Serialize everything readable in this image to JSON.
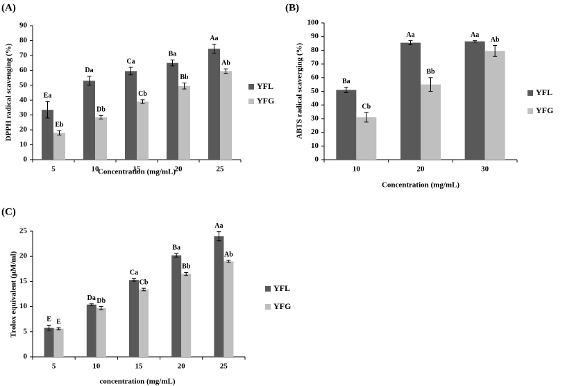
{
  "colors": {
    "YFL": "#595959",
    "YFG": "#bfbfbf",
    "axis": "#000000"
  },
  "chart_data": [
    {
      "id": "A",
      "type": "bar",
      "panel_label": "(A)",
      "xlabel": "Concentration (mg/mL)",
      "ylabel": "DPPH radical scavenging (%)",
      "ylim": [
        0,
        90
      ],
      "yticks": [
        0,
        10,
        20,
        30,
        40,
        50,
        60,
        70,
        80,
        90
      ],
      "grid": false,
      "legend": "right",
      "categories": [
        "5",
        "10",
        "15",
        "20",
        "25"
      ],
      "series": [
        {
          "name": "YFL",
          "values": [
            33.5,
            53,
            59.5,
            65,
            74.5
          ],
          "errors": [
            5.5,
            3,
            2.5,
            2,
            3
          ],
          "labels": [
            "Ea",
            "Da",
            "Ca",
            "Ba",
            "Aa"
          ]
        },
        {
          "name": "YFG",
          "values": [
            18,
            28.5,
            39,
            49.5,
            59.5
          ],
          "errors": [
            1.5,
            1.2,
            1.2,
            2,
            1.5
          ],
          "labels": [
            "Eb",
            "Db",
            "Cb",
            "Bb",
            "Ab"
          ]
        }
      ]
    },
    {
      "id": "B",
      "type": "bar",
      "panel_label": "(B)",
      "xlabel": "Concentration (mg/mL)",
      "ylabel": "ABTS radical scaverging (%)",
      "ylim": [
        0,
        100
      ],
      "yticks": [
        0,
        10,
        20,
        30,
        40,
        50,
        60,
        70,
        80,
        90,
        100
      ],
      "grid": false,
      "legend": "right",
      "categories": [
        "10",
        "20",
        "30"
      ],
      "series": [
        {
          "name": "YFL",
          "values": [
            51,
            85.5,
            86.5
          ],
          "errors": [
            2,
            1.5,
            0.5
          ],
          "labels": [
            "Ba",
            "Aa",
            "Aa"
          ]
        },
        {
          "name": "YFG",
          "values": [
            31,
            55,
            79.5
          ],
          "errors": [
            3.5,
            5,
            4
          ],
          "labels": [
            "Cb",
            "Bb",
            "Ab"
          ]
        }
      ]
    },
    {
      "id": "C",
      "type": "bar",
      "panel_label": "(C)",
      "xlabel": "concentration (mg/mL)",
      "ylabel": "Trolox equivalent (μM/ml)",
      "ylim": [
        0,
        25
      ],
      "yticks": [
        0,
        5,
        10,
        15,
        20,
        25
      ],
      "grid": false,
      "legend": "right",
      "categories": [
        "5",
        "10",
        "15",
        "20",
        "25"
      ],
      "series": [
        {
          "name": "YFL",
          "values": [
            5.8,
            10.4,
            15.3,
            20.2,
            24
          ],
          "errors": [
            0.5,
            0.15,
            0.25,
            0.35,
            0.9
          ],
          "labels": [
            "E",
            "Da",
            "Ca",
            "Ba",
            "Aa"
          ]
        },
        {
          "name": "YFG",
          "values": [
            5.6,
            9.7,
            13.4,
            16.5,
            19
          ],
          "errors": [
            0.2,
            0.3,
            0.25,
            0.3,
            0.2
          ],
          "labels": [
            "E",
            "Db",
            "Cb",
            "Bb",
            "Ab"
          ]
        }
      ]
    }
  ]
}
